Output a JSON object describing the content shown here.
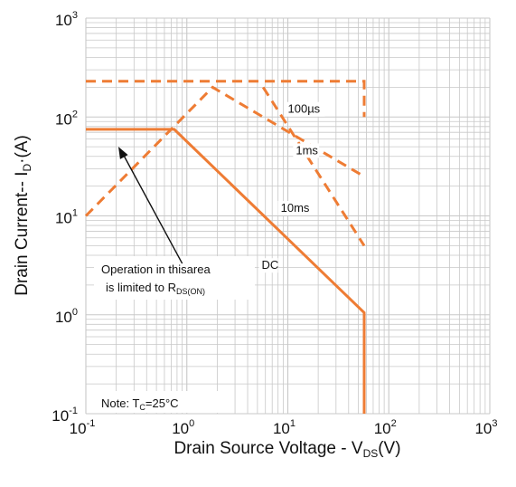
{
  "chart_data": {
    "type": "line",
    "title": "",
    "xlabel": {
      "main": "Drain Source Voltage - V",
      "sub": "DS",
      "tail": "(V)"
    },
    "ylabel": {
      "main": "Drain Current-- I",
      "sub": "D",
      "tail": "·(A)"
    },
    "xscale": "log",
    "yscale": "log",
    "xlim": [
      0.1,
      1000
    ],
    "ylim": [
      0.1,
      1000
    ],
    "grid": true,
    "x_ticks": [
      {
        "base": "10",
        "exp": "-1"
      },
      {
        "base": "10",
        "exp": "0"
      },
      {
        "base": "10",
        "exp": "1"
      },
      {
        "base": "10",
        "exp": "2"
      },
      {
        "base": "10",
        "exp": "3"
      }
    ],
    "y_ticks": [
      {
        "base": "10",
        "exp": "-1"
      },
      {
        "base": "10",
        "exp": "0"
      },
      {
        "base": "10",
        "exp": "1"
      },
      {
        "base": "10",
        "exp": "2"
      },
      {
        "base": "10",
        "exp": "3"
      }
    ],
    "series": [
      {
        "name": "100µs",
        "style": "dashed",
        "points": [
          [
            0.1,
            230
          ],
          [
            57,
            230
          ],
          [
            57,
            100
          ]
        ]
      },
      {
        "name": "1ms",
        "style": "dashed",
        "points": [
          [
            0.1,
            10
          ],
          [
            1.8,
            200
          ],
          [
            57,
            25
          ]
        ]
      },
      {
        "name": "10ms",
        "style": "dashed",
        "points": [
          [
            5.7,
            200
          ],
          [
            57,
            5
          ]
        ]
      },
      {
        "name": "DC",
        "style": "solid",
        "points": [
          [
            0.1,
            75
          ],
          [
            0.75,
            75
          ],
          [
            57,
            1.05
          ],
          [
            57,
            0.1
          ]
        ]
      }
    ],
    "series_labels": [
      {
        "text": "100µs",
        "x": 10,
        "y": 110
      },
      {
        "text": "1ms",
        "x": 12,
        "y": 42
      },
      {
        "text": "10ms",
        "x": 8.5,
        "y": 11
      },
      {
        "text": "DC",
        "x": 5.5,
        "y": 2.9
      }
    ],
    "annotation": {
      "line1": "Operation in thisarea",
      "line2_main": "is limited to R",
      "line2_sub": "DS(ON)",
      "arrow_from": [
        0.9,
        3.3
      ],
      "arrow_to": [
        0.21,
        50
      ]
    },
    "note": {
      "main": "Note: T",
      "sub": "C",
      "tail": "=25°C"
    },
    "colors": {
      "series": "#ee7c34",
      "grid": "#c8c8c8",
      "text": "#111111"
    }
  }
}
